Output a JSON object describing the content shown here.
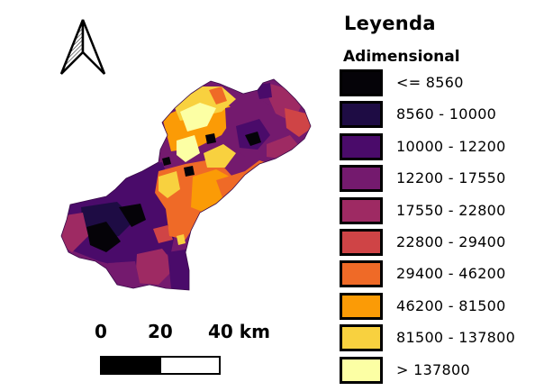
{
  "legend": {
    "title": "Leyenda",
    "subtitle": "Adimensional",
    "items": [
      {
        "label": "<= 8560",
        "color": "#050308"
      },
      {
        "label": "8560 - 10000",
        "color": "#1e0c44"
      },
      {
        "label": "10000 - 12200",
        "color": "#4a0b6a"
      },
      {
        "label": "12200 - 17550",
        "color": "#741a6e"
      },
      {
        "label": "17550 - 22800",
        "color": "#9e2a63"
      },
      {
        "label": "22800 - 29400",
        "color": "#cf4446"
      },
      {
        "label": "29400 - 46200",
        "color": "#ef6a27"
      },
      {
        "label": "46200 - 81500",
        "color": "#fb9b06"
      },
      {
        "label": "81500 - 137800",
        "color": "#f8d13f"
      },
      {
        "label": "> 137800",
        "color": "#fcffa4"
      }
    ]
  },
  "scale_bar": {
    "labels": [
      "0",
      "20",
      "40 km"
    ]
  },
  "north_arrow": {
    "icon": "north-arrow-icon"
  }
}
